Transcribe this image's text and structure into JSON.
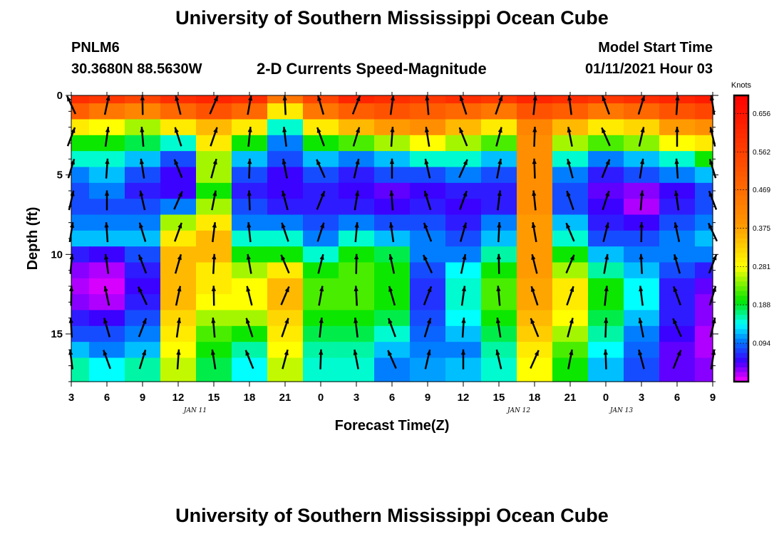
{
  "header": {
    "title": "University of Southern Mississippi Ocean Cube",
    "station_id": "PNLM6",
    "station_coords": "30.3680N 88.5630W",
    "plot_title": "2-D Currents Speed-Magnitude",
    "model_start_label": "Model Start Time",
    "model_start_value": "01/11/2021 Hour 03"
  },
  "footer": {
    "title": "University of Southern Mississippi Ocean Cube"
  },
  "chart_data": {
    "type": "heatmap",
    "title": "2-D Currents Speed-Magnitude",
    "xlabel": "Forecast Time(Z)",
    "ylabel": "Depth (ft)",
    "x_tick_labels": [
      "3",
      "6",
      "9",
      "12",
      "15",
      "18",
      "21",
      "0",
      "3",
      "6",
      "9",
      "12",
      "15",
      "18",
      "21",
      "0",
      "3",
      "6",
      "9"
    ],
    "date_labels": [
      "JAN 11",
      "JAN 12",
      "JAN 13"
    ],
    "y_tick_labels": [
      "0",
      "5",
      "10",
      "15"
    ],
    "y_range": [
      0,
      18
    ],
    "colorbar": {
      "label": "Knots",
      "ticks": [
        "0.656",
        "0.562",
        "0.469",
        "0.375",
        "0.281",
        "0.188",
        "0.094"
      ],
      "range": [
        0,
        0.7
      ]
    },
    "hours": [
      3,
      6,
      9,
      12,
      15,
      18,
      21,
      24,
      27,
      30,
      33,
      36,
      39,
      42,
      45,
      48,
      51,
      54,
      57
    ],
    "depths": [
      0,
      1,
      2,
      3,
      4,
      5,
      6,
      7,
      8,
      9,
      10,
      11,
      12,
      13,
      14,
      15,
      16,
      17
    ],
    "speed": [
      [
        0.6,
        0.58,
        0.55,
        0.6,
        0.62,
        0.6,
        0.45,
        0.55,
        0.62,
        0.6,
        0.58,
        0.6,
        0.58,
        0.62,
        0.6,
        0.58,
        0.6,
        0.62,
        0.64
      ],
      [
        0.5,
        0.45,
        0.42,
        0.48,
        0.52,
        0.48,
        0.3,
        0.45,
        0.5,
        0.52,
        0.5,
        0.48,
        0.45,
        0.52,
        0.5,
        0.45,
        0.48,
        0.52,
        0.55
      ],
      [
        0.3,
        0.28,
        0.25,
        0.3,
        0.35,
        0.3,
        0.15,
        0.3,
        0.35,
        0.38,
        0.4,
        0.35,
        0.3,
        0.42,
        0.35,
        0.3,
        0.32,
        0.38,
        0.4
      ],
      [
        0.2,
        0.2,
        0.18,
        0.15,
        0.3,
        0.2,
        0.1,
        0.2,
        0.22,
        0.25,
        0.28,
        0.25,
        0.22,
        0.4,
        0.25,
        0.22,
        0.24,
        0.28,
        0.3
      ],
      [
        0.15,
        0.15,
        0.12,
        0.08,
        0.25,
        0.12,
        0.08,
        0.12,
        0.1,
        0.12,
        0.15,
        0.15,
        0.12,
        0.4,
        0.15,
        0.1,
        0.12,
        0.15,
        0.2
      ],
      [
        0.1,
        0.12,
        0.08,
        0.05,
        0.25,
        0.08,
        0.05,
        0.08,
        0.06,
        0.08,
        0.08,
        0.1,
        0.08,
        0.4,
        0.1,
        0.06,
        0.08,
        0.1,
        0.12
      ],
      [
        0.08,
        0.1,
        0.06,
        0.05,
        0.2,
        0.06,
        0.05,
        0.06,
        0.05,
        0.04,
        0.05,
        0.06,
        0.06,
        0.4,
        0.08,
        0.04,
        0.03,
        0.05,
        0.08
      ],
      [
        0.08,
        0.08,
        0.08,
        0.1,
        0.25,
        0.08,
        0.06,
        0.06,
        0.06,
        0.05,
        0.06,
        0.05,
        0.06,
        0.4,
        0.08,
        0.05,
        0.02,
        0.06,
        0.08
      ],
      [
        0.1,
        0.1,
        0.1,
        0.25,
        0.3,
        0.1,
        0.1,
        0.08,
        0.1,
        0.08,
        0.08,
        0.06,
        0.1,
        0.38,
        0.12,
        0.06,
        0.05,
        0.08,
        0.1
      ],
      [
        0.12,
        0.12,
        0.12,
        0.3,
        0.35,
        0.15,
        0.15,
        0.1,
        0.15,
        0.12,
        0.1,
        0.08,
        0.12,
        0.38,
        0.15,
        0.08,
        0.08,
        0.1,
        0.12
      ],
      [
        0.06,
        0.05,
        0.08,
        0.35,
        0.35,
        0.2,
        0.2,
        0.15,
        0.2,
        0.18,
        0.1,
        0.1,
        0.16,
        0.38,
        0.2,
        0.12,
        0.1,
        0.1,
        0.1
      ],
      [
        0.03,
        0.02,
        0.06,
        0.35,
        0.3,
        0.25,
        0.3,
        0.2,
        0.22,
        0.2,
        0.08,
        0.14,
        0.2,
        0.38,
        0.25,
        0.16,
        0.12,
        0.08,
        0.06
      ],
      [
        0.02,
        0.01,
        0.05,
        0.35,
        0.3,
        0.28,
        0.35,
        0.22,
        0.22,
        0.2,
        0.07,
        0.15,
        0.22,
        0.37,
        0.3,
        0.2,
        0.14,
        0.06,
        0.04
      ],
      [
        0.03,
        0.02,
        0.06,
        0.35,
        0.28,
        0.28,
        0.35,
        0.22,
        0.22,
        0.2,
        0.07,
        0.15,
        0.22,
        0.37,
        0.3,
        0.2,
        0.14,
        0.06,
        0.03
      ],
      [
        0.06,
        0.05,
        0.08,
        0.32,
        0.25,
        0.25,
        0.32,
        0.2,
        0.2,
        0.18,
        0.08,
        0.14,
        0.2,
        0.35,
        0.28,
        0.18,
        0.12,
        0.06,
        0.03
      ],
      [
        0.08,
        0.08,
        0.1,
        0.3,
        0.22,
        0.2,
        0.3,
        0.18,
        0.18,
        0.15,
        0.09,
        0.12,
        0.18,
        0.33,
        0.25,
        0.16,
        0.1,
        0.05,
        0.02
      ],
      [
        0.12,
        0.1,
        0.12,
        0.28,
        0.2,
        0.16,
        0.28,
        0.16,
        0.16,
        0.12,
        0.1,
        0.1,
        0.16,
        0.3,
        0.22,
        0.14,
        0.09,
        0.04,
        0.02
      ],
      [
        0.16,
        0.14,
        0.16,
        0.26,
        0.18,
        0.14,
        0.26,
        0.15,
        0.15,
        0.1,
        0.11,
        0.12,
        0.15,
        0.28,
        0.2,
        0.12,
        0.08,
        0.04,
        0.03
      ]
    ]
  }
}
